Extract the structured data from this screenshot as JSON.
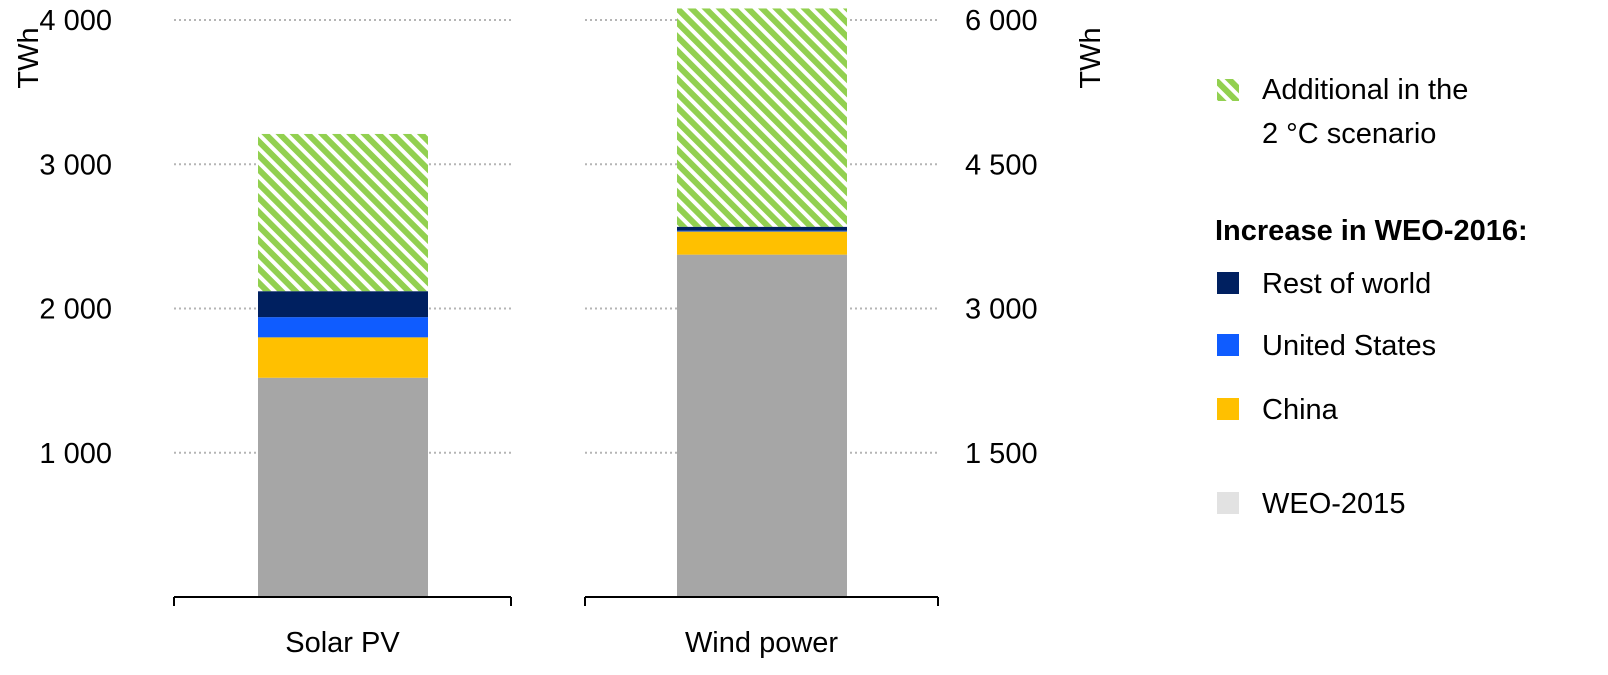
{
  "chart_data": {
    "type": "bar",
    "stacked": true,
    "grid": true,
    "legend_position": "right",
    "panels": [
      {
        "category": "Solar PV",
        "axis_side": "left",
        "ylabel": "TWh",
        "ylim": [
          0,
          4000
        ],
        "ticks": [
          1000,
          2000,
          3000,
          4000
        ],
        "tick_labels": [
          "1 000",
          "2 000",
          "3 000",
          "4 000"
        ],
        "segments": [
          {
            "series": "WEO-2015",
            "value": 1520
          },
          {
            "series": "China",
            "value": 280
          },
          {
            "series": "United States",
            "value": 140
          },
          {
            "series": "Rest of world",
            "value": 180
          },
          {
            "series": "Additional in the 2 °C scenario",
            "value": 1090
          }
        ]
      },
      {
        "category": "Wind power",
        "axis_side": "right",
        "ylabel": "TWh",
        "ylim": [
          0,
          6000
        ],
        "ticks": [
          1500,
          3000,
          4500,
          6000
        ],
        "tick_labels": [
          "1 500",
          "3 000",
          "4 500",
          "6 000"
        ],
        "segments": [
          {
            "series": "WEO-2015",
            "value": 3560
          },
          {
            "series": "China",
            "value": 240
          },
          {
            "series": "United States",
            "value": 10
          },
          {
            "series": "Rest of world",
            "value": 40
          },
          {
            "series": "Additional in the 2 °C scenario",
            "value": 2270
          }
        ]
      }
    ],
    "series_colors": {
      "WEO-2015": "#a6a6a6",
      "China": "#ffc000",
      "United States": "#0f5cff",
      "Rest of world": "#002060",
      "Additional in the 2 °C scenario": "#92d050"
    },
    "legend": {
      "top_entry": {
        "series": "Additional in the 2 °C scenario",
        "lines": [
          "Additional in the",
          "2 °C scenario"
        ],
        "color": "#92d050",
        "hatched": true
      },
      "heading": "Increase in WEO-2016:",
      "entries": [
        {
          "label": "Rest of world",
          "color": "#002060"
        },
        {
          "label": "United States",
          "color": "#0f5cff"
        },
        {
          "label": "China",
          "color": "#ffc000"
        },
        {
          "label": "WEO-2015",
          "color": "#e2e2e2"
        }
      ]
    }
  }
}
